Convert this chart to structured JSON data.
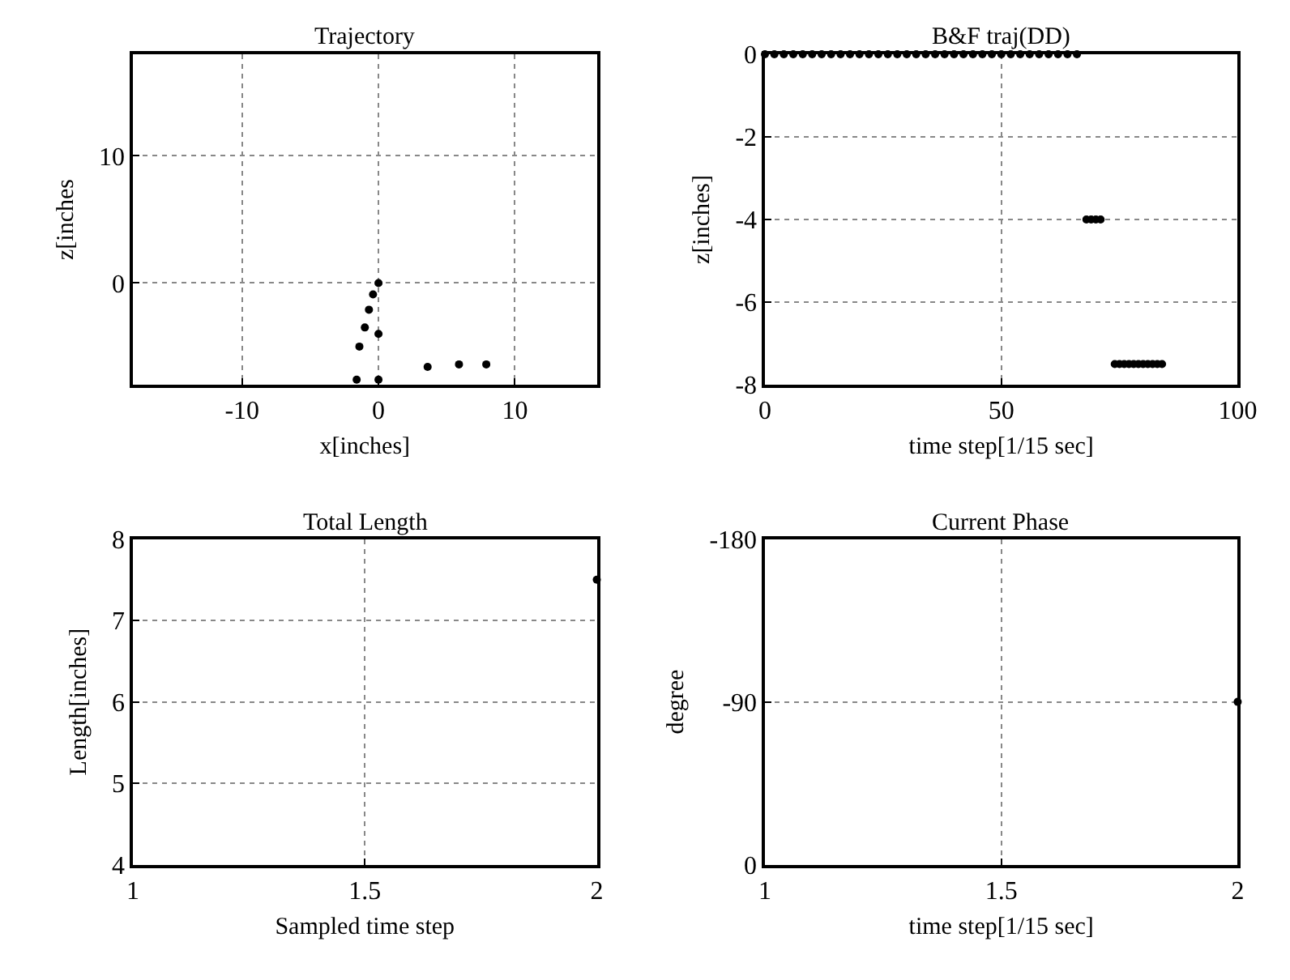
{
  "chart_data": [
    {
      "type": "scatter",
      "title": "Trajectory",
      "xlabel": "x[inches]",
      "ylabel": "z[inches",
      "xlim": [
        -18,
        16
      ],
      "ylim": [
        -8,
        18
      ],
      "xticks": [
        -10,
        0,
        10
      ],
      "yticks": [
        0,
        10
      ],
      "grid": true,
      "marker": "circle",
      "series": [
        {
          "color": "#000000",
          "x": [
            0,
            0,
            0
          ],
          "values": [
            0,
            -4,
            -7.6
          ]
        },
        {
          "color": "#000000",
          "x": [
            -1.6,
            -1.4,
            -1.0,
            -0.7,
            -0.4,
            3.6,
            5.9,
            7.9
          ],
          "values": [
            -7.6,
            -5,
            -3.5,
            -2.1,
            -0.9,
            -6.6,
            -6.4,
            -6.4
          ]
        }
      ]
    },
    {
      "type": "scatter",
      "title": "B&F traj(DD)",
      "xlabel": "time step[1/15 sec]",
      "ylabel": "z[inches]",
      "xlim": [
        0,
        100
      ],
      "ylim": [
        -8,
        0
      ],
      "xticks": [
        0,
        50,
        100
      ],
      "yticks": [
        -8,
        -6,
        -4,
        -2,
        0
      ],
      "grid": true,
      "marker": "circle",
      "series": [
        {
          "color": "#000000",
          "x": [
            0,
            2,
            4,
            6,
            8,
            10,
            12,
            14,
            16,
            18,
            20,
            22,
            24,
            26,
            28,
            30,
            32,
            34,
            36,
            38,
            40,
            42,
            44,
            46,
            48,
            50,
            52,
            54,
            56,
            58,
            60,
            62,
            64,
            66,
            68,
            69,
            70,
            71,
            74,
            75,
            76,
            77,
            78,
            79,
            80,
            81,
            82,
            83,
            84
          ],
          "values": [
            0,
            0,
            0,
            0,
            0,
            0,
            0,
            0,
            0,
            0,
            0,
            0,
            0,
            0,
            0,
            0,
            0,
            0,
            0,
            0,
            0,
            0,
            0,
            0,
            0,
            0,
            0,
            0,
            0,
            0,
            0,
            0,
            0,
            0,
            -4,
            -4,
            -4,
            -4,
            -7.5,
            -7.5,
            -7.5,
            -7.5,
            -7.5,
            -7.5,
            -7.5,
            -7.5,
            -7.5,
            -7.5,
            -7.5
          ]
        }
      ]
    },
    {
      "type": "scatter",
      "title": "Total Length",
      "xlabel": "Sampled time step",
      "ylabel": "Length[inches]",
      "xlim": [
        1,
        2
      ],
      "ylim": [
        4,
        8
      ],
      "xticks": [
        1,
        1.5,
        2
      ],
      "yticks": [
        4,
        5,
        6,
        7,
        8
      ],
      "grid": true,
      "marker": "circle",
      "series": [
        {
          "color": "#000000",
          "x": [
            2
          ],
          "values": [
            7.5
          ]
        }
      ]
    },
    {
      "type": "scatter",
      "title": "Current Phase",
      "xlabel": "time step[1/15 sec]",
      "ylabel": "degree",
      "xlim": [
        1,
        2
      ],
      "ylim": [
        0,
        -180
      ],
      "xticks": [
        1,
        1.5,
        2
      ],
      "yticks": [
        0,
        -90,
        -180
      ],
      "grid": true,
      "marker": "circle",
      "series": [
        {
          "color": "#000000",
          "x": [
            2
          ],
          "values": [
            -90
          ]
        }
      ]
    }
  ]
}
